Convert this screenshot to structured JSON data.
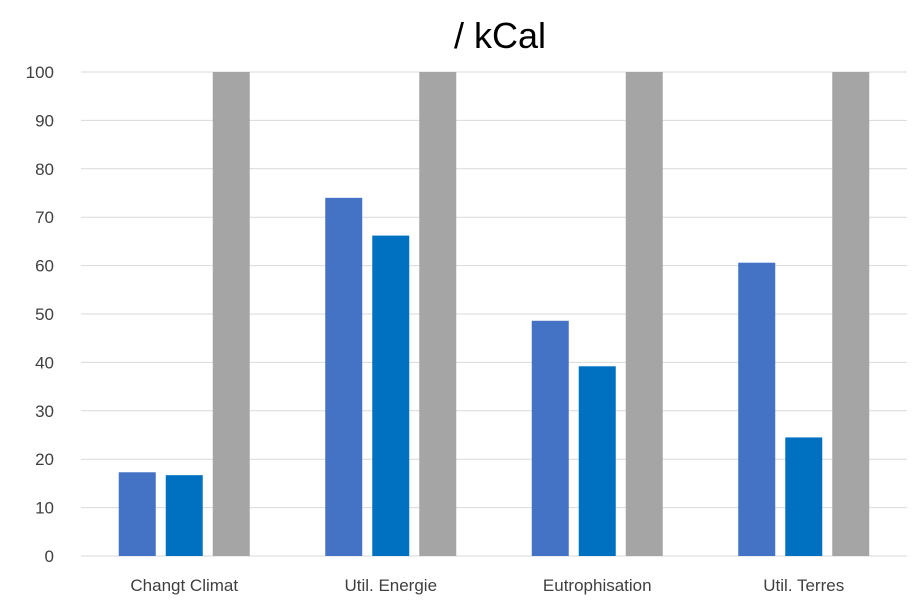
{
  "chart_data": {
    "type": "bar",
    "title": "/ kCal",
    "xlabel": "",
    "ylabel": "",
    "ylim": [
      0,
      100
    ],
    "yticks": [
      0,
      10,
      20,
      30,
      40,
      50,
      60,
      70,
      80,
      90,
      100
    ],
    "grid": true,
    "legend": "none",
    "categories": [
      "Changt Climat",
      "Util. Energie",
      "Eutrophisation",
      "Util. Terres"
    ],
    "series": [
      {
        "values": [
          17.3,
          74,
          48.6,
          60.6
        ],
        "color": "#4472c4"
      },
      {
        "values": [
          16.7,
          66.2,
          39.2,
          24.5
        ],
        "color": "#0070c0"
      },
      {
        "values": [
          100,
          100,
          100,
          100
        ],
        "color": "#a5a5a5"
      }
    ]
  }
}
